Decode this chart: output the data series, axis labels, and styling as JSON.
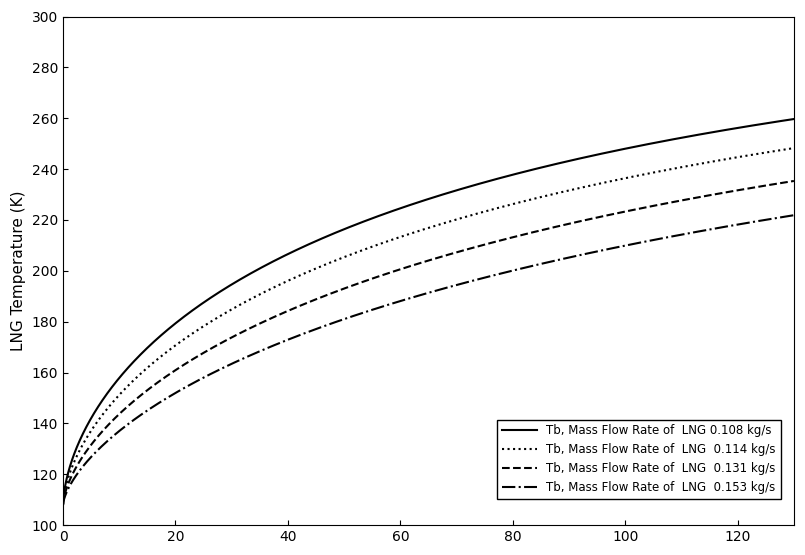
{
  "ylabel": "LNG Temperature (K)",
  "xlabel": "",
  "ylim": [
    100,
    300
  ],
  "xlim": [
    0,
    130
  ],
  "yticks": [
    100,
    120,
    140,
    160,
    180,
    200,
    220,
    240,
    260,
    280,
    300
  ],
  "xticks": [
    0,
    20,
    40,
    60,
    80,
    100,
    120
  ],
  "background_color": "#ffffff",
  "curves": [
    {
      "label": "Tb, Mass Flow Rate of  LNG 0.108 kg/s",
      "linestyle": "solid",
      "color": "#000000",
      "linewidth": 1.5,
      "T0": 108.0,
      "T_max": 310.0,
      "k": 0.068,
      "n": 0.62
    },
    {
      "label": "Tb, Mass Flow Rate of  LNG  0.114 kg/s",
      "linestyle": "dotted",
      "color": "#000000",
      "linewidth": 1.5,
      "T0": 108.0,
      "T_max": 305.0,
      "k": 0.058,
      "n": 0.63
    },
    {
      "label": "Tb, Mass Flow Rate of  LNG  0.131 kg/s",
      "linestyle": "dashed",
      "color": "#000000",
      "linewidth": 1.5,
      "T0": 108.0,
      "T_max": 300.0,
      "k": 0.046,
      "n": 0.65
    },
    {
      "label": "Tb, Mass Flow Rate of  LNG  0.153 kg/s",
      "linestyle": "dashdot",
      "color": "#000000",
      "linewidth": 1.5,
      "T0": 108.0,
      "T_max": 295.0,
      "k": 0.036,
      "n": 0.67
    }
  ],
  "fontsize_ylabel": 11,
  "fontsize_legend": 8.5
}
